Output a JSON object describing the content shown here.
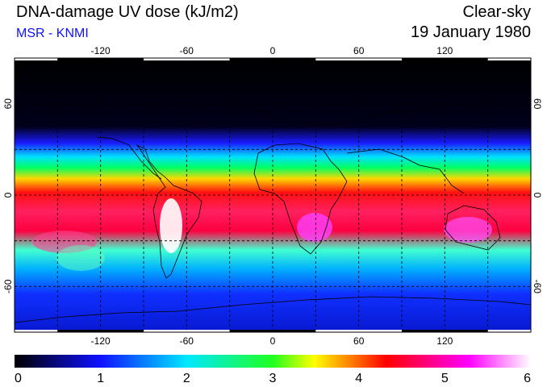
{
  "header": {
    "title": "DNA-damage UV dose (kJ/m2)",
    "credit": "MSR - KNMI",
    "condition": "Clear-sky",
    "date": "19 January 1980"
  },
  "map": {
    "projection": "equirectangular",
    "lon_range": [
      -180,
      180
    ],
    "lat_range": [
      -90,
      90
    ],
    "top_lon_labels": [
      "-120",
      "-60",
      "0",
      "60",
      "120"
    ],
    "bottom_lon_labels": [
      "-120",
      "-60",
      "0",
      "60",
      "120"
    ],
    "left_lat_labels": [
      "60",
      "0",
      "-60"
    ],
    "right_lat_labels": [
      "60",
      "0",
      "-60"
    ],
    "gridlines": "dashed, every 30 degrees",
    "field_bands_by_latitude": [
      {
        "lat_from": 90,
        "lat_to": 45,
        "value": 0
      },
      {
        "lat_from": 45,
        "lat_to": 30,
        "value": 1
      },
      {
        "lat_from": 30,
        "lat_to": 20,
        "value": 2.2
      },
      {
        "lat_from": 20,
        "lat_to": 5,
        "value": 3.2
      },
      {
        "lat_from": 5,
        "lat_to": -40,
        "value": 4.8
      },
      {
        "lat_from": -40,
        "lat_to": -55,
        "value": 2.5
      },
      {
        "lat_from": -55,
        "lat_to": -90,
        "value": 1.2
      }
    ]
  },
  "colorbar": {
    "min": 0,
    "max": 6,
    "tick_labels": [
      "0",
      "1",
      "2",
      "3",
      "4",
      "5",
      "6"
    ],
    "colors": [
      "#000000",
      "#1010ff",
      "#00e8ff",
      "#20ff20",
      "#ffff00",
      "#ff0000",
      "#ff00ff",
      "#ffffff"
    ]
  }
}
